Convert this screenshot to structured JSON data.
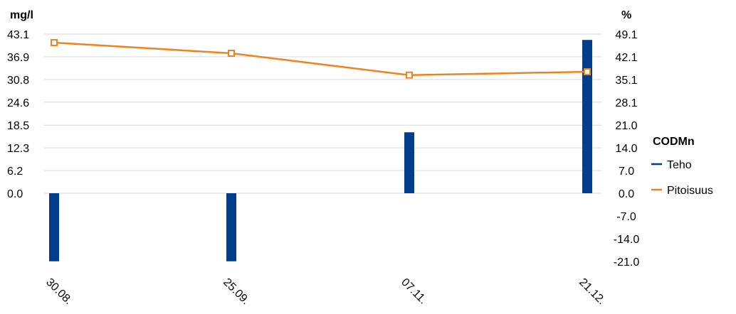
{
  "chart_data": {
    "type": "bar+line",
    "categories": [
      "30.08.",
      "25.09.",
      "07.11.",
      "21.12."
    ],
    "left_axis": {
      "unit": "mg/l",
      "ticks": [
        "43.1",
        "36.9",
        "30.8",
        "24.6",
        "18.5",
        "12.3",
        "6.2",
        "0.0"
      ],
      "range": [
        -43.1,
        43.1
      ]
    },
    "right_axis": {
      "unit": "%",
      "ticks": [
        "49.1",
        "42.1",
        "35.1",
        "28.1",
        "21.0",
        "14.0",
        "7.0",
        "0.0",
        "-7.0",
        "-14.0",
        "-21.0"
      ],
      "range": [
        -21.0,
        49.1
      ]
    },
    "series": [
      {
        "name": "Teho",
        "type": "bar",
        "axis": "right",
        "color": "#003d8a",
        "values": [
          -21.0,
          -21.0,
          18.8,
          47.3
        ]
      },
      {
        "name": "Pitoisuus",
        "type": "line",
        "axis": "left",
        "color": "#f0821e",
        "marker": "square",
        "values": [
          40.8,
          37.9,
          32.0,
          32.9
        ]
      }
    ],
    "legend": {
      "title": "CODMn",
      "position": "right"
    },
    "grid": true
  }
}
